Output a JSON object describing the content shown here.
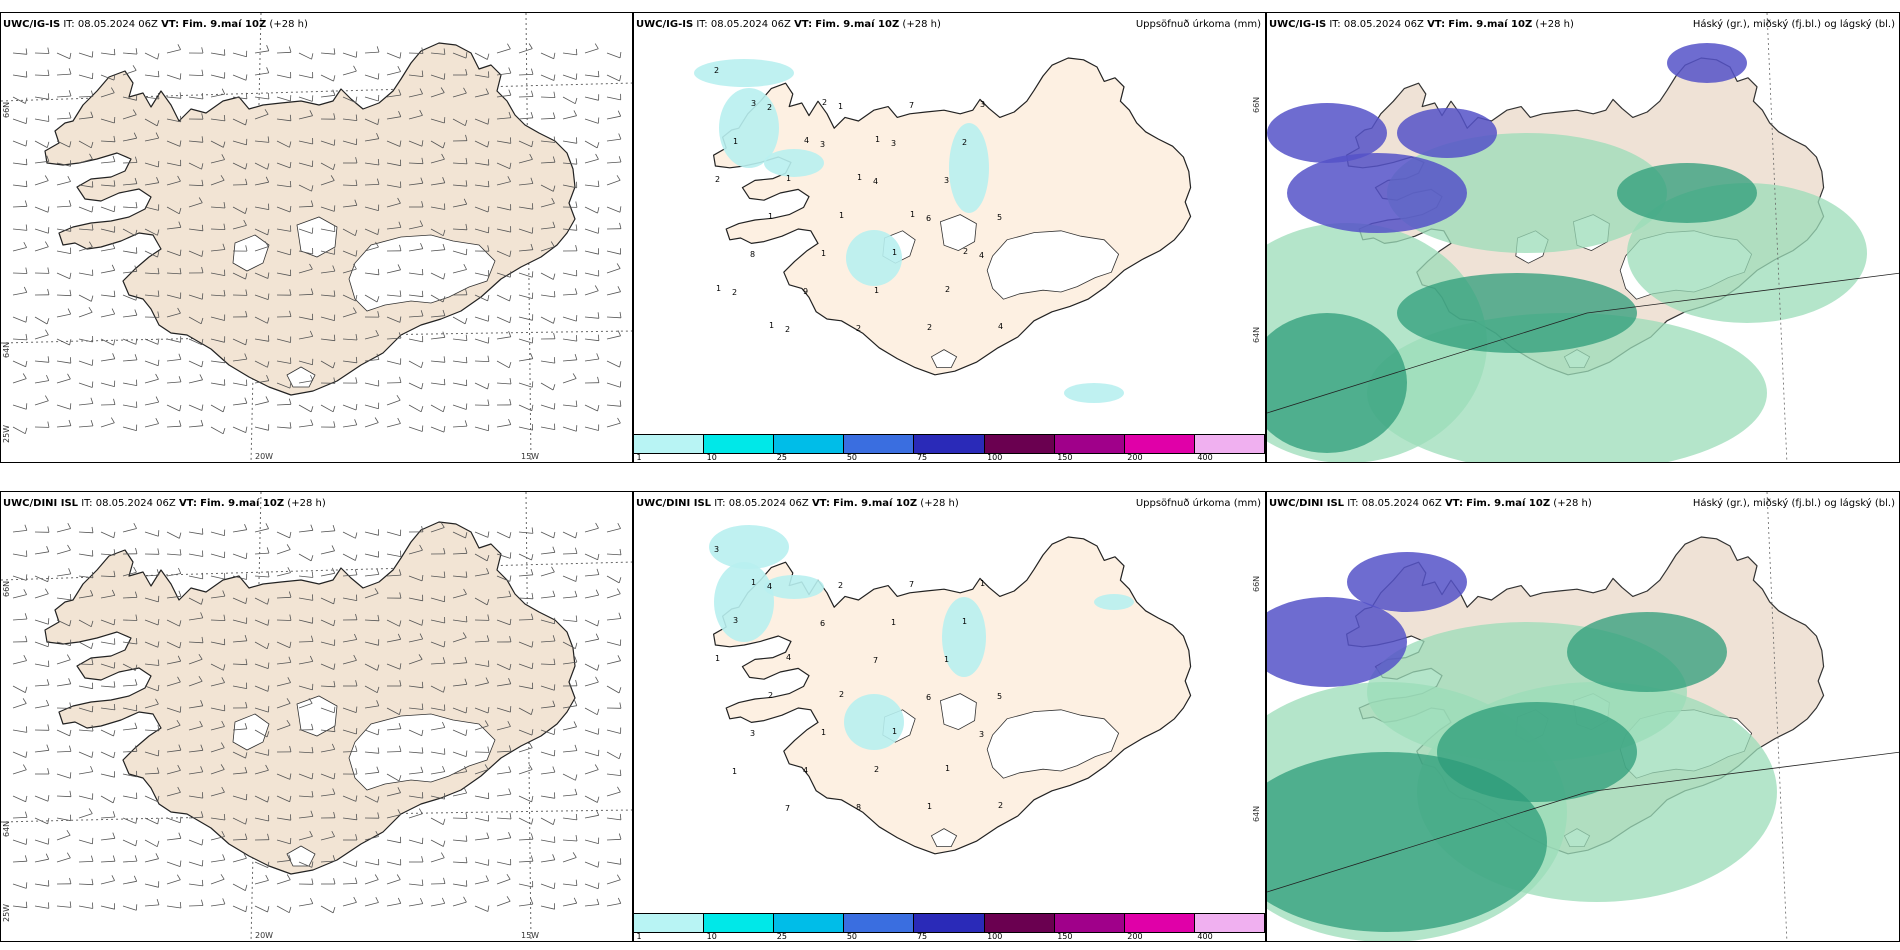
{
  "panels": {
    "top_wind": {
      "model": "UWC/IG-IS",
      "it": "IT: 08.05.2024 06Z",
      "vt_label": "VT:",
      "vt": "Fim. 9.maí 10Z",
      "lead": "(+28 h)"
    },
    "top_precip": {
      "model": "UWC/IG-IS",
      "it": "IT: 08.05.2024 06Z",
      "vt_label": "VT:",
      "vt": "Fim. 9.maí 10Z",
      "lead": "(+28 h)",
      "right": "Uppsöfnuð úrkoma (mm)"
    },
    "top_cloud": {
      "model": "UWC/IG-IS",
      "it": "IT: 08.05.2024 06Z",
      "vt_label": "VT:",
      "vt": "Fim. 9.maí 10Z",
      "lead": "(+28 h)",
      "right": "Háský (gr.), miðský (fj.bl.) og lágský (bl.)"
    },
    "bot_wind": {
      "model": "UWC/DINI ISL",
      "it": "IT: 08.05.2024 06Z",
      "vt_label": "VT:",
      "vt": "Fim. 9.maí 10Z",
      "lead": "(+28 h)"
    },
    "bot_precip": {
      "model": "UWC/DINI ISL",
      "it": "IT: 08.05.2024 06Z",
      "vt_label": "VT:",
      "vt": "Fim. 9.maí 10Z",
      "lead": "(+28 h)",
      "right": "Uppsöfnuð úrkoma (mm)"
    },
    "bot_cloud": {
      "model": "UWC/DINI ISL",
      "it": "IT: 08.05.2024 06Z",
      "vt_label": "VT:",
      "vt": "Fim. 9.maí 10Z",
      "lead": "(+28 h)",
      "right": "Háský (gr.), miðský (fj.bl.) og lágský (bl.)"
    }
  },
  "grid_labels": {
    "lat66": "66N",
    "lat64": "64N",
    "lon25": "25W",
    "lon20": "20W",
    "lon15": "15W"
  },
  "colorbar": {
    "ticks": [
      "1",
      "10",
      "25",
      "50",
      "75",
      "100",
      "150",
      "200",
      "400"
    ],
    "colors": [
      "#b8f4f4",
      "#00e8e8",
      "#00bde8",
      "#3a6ee0",
      "#2a2ab8",
      "#6a0050",
      "#a0008a",
      "#e000a8",
      "#f0b0f0"
    ]
  },
  "colors": {
    "land_wind": "#f2e4d4",
    "land_precip": "#fdf0e2",
    "precip_light": "#b8f0f0",
    "cloud_high": "#9bdcb8",
    "cloud_mid": "#2e9c7a",
    "cloud_low": "#5552c8"
  },
  "precip_numbers_top": [
    "2",
    "2",
    "3",
    "4",
    "6",
    "4",
    "2",
    "2",
    "1",
    "3",
    "3",
    "5",
    "8",
    "9",
    "2",
    "7",
    "2",
    "2",
    "1",
    "1",
    "1",
    "2",
    "3",
    "1",
    "1",
    "1",
    "1",
    "2",
    "4",
    "3",
    "4",
    "1",
    "1",
    "2",
    "1",
    "1",
    "2",
    "1"
  ],
  "precip_numbers_bot": [
    "3",
    "4",
    "6",
    "7",
    "6",
    "3",
    "1",
    "7",
    "2",
    "1",
    "1",
    "5",
    "3",
    "4",
    "8",
    "7",
    "1",
    "1",
    "2",
    "1",
    "2",
    "1",
    "1",
    "3",
    "4",
    "2",
    "1",
    "1",
    "2",
    "1"
  ]
}
